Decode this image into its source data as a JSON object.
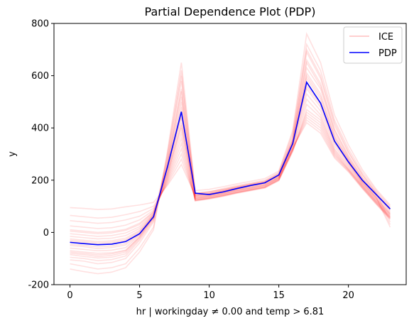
{
  "chart_data": {
    "type": "line",
    "title": "Partial Dependence Plot (PDP)",
    "xlabel": "hr | workingday ≠ 0.00 and temp > 6.81",
    "ylabel": "y",
    "xlim": [
      -1.15,
      24.15
    ],
    "ylim": [
      -200,
      800
    ],
    "xticks": [
      0,
      5,
      10,
      15,
      20
    ],
    "yticks": [
      -200,
      0,
      200,
      400,
      600,
      800
    ],
    "grid": false,
    "legend_position": "top-right",
    "x": [
      0,
      1,
      2,
      3,
      4,
      5,
      6,
      7,
      8,
      9,
      10,
      11,
      12,
      13,
      14,
      15,
      16,
      17,
      18,
      19,
      20,
      21,
      22,
      23
    ],
    "series": [
      {
        "name": "PDP",
        "color": "#0000ff",
        "values": [
          -38,
          -43,
          -47,
          -45,
          -35,
          -5,
          60,
          250,
          462,
          150,
          145,
          155,
          168,
          180,
          190,
          220,
          340,
          575,
          495,
          350,
          270,
          200,
          145,
          90
        ]
      },
      {
        "name": "ICE",
        "color": "#ff0000",
        "opacity": 0.12,
        "lines": [
          [
            -120,
            -130,
            -140,
            -135,
            -120,
            -60,
            20,
            300,
            620,
            150,
            155,
            168,
            180,
            190,
            200,
            230,
            380,
            720,
            620,
            430,
            320,
            230,
            160,
            100
          ],
          [
            -105,
            -110,
            -120,
            -115,
            -100,
            -40,
            40,
            280,
            580,
            145,
            150,
            162,
            175,
            186,
            196,
            225,
            360,
            690,
            590,
            410,
            305,
            220,
            155,
            95
          ],
          [
            -95,
            -100,
            -108,
            -104,
            -90,
            -30,
            45,
            270,
            550,
            140,
            147,
            158,
            170,
            182,
            192,
            220,
            355,
            660,
            570,
            395,
            295,
            212,
            150,
            90
          ],
          [
            -85,
            -92,
            -98,
            -95,
            -82,
            -25,
            50,
            260,
            520,
            138,
            145,
            155,
            167,
            178,
            188,
            218,
            350,
            630,
            550,
            380,
            285,
            205,
            145,
            85
          ],
          [
            -80,
            -85,
            -92,
            -88,
            -75,
            -20,
            55,
            255,
            500,
            135,
            142,
            152,
            164,
            175,
            185,
            215,
            345,
            610,
            530,
            370,
            280,
            200,
            140,
            80
          ],
          [
            -70,
            -75,
            -80,
            -78,
            -68,
            -15,
            60,
            250,
            480,
            132,
            140,
            150,
            162,
            172,
            182,
            212,
            340,
            590,
            510,
            360,
            275,
            195,
            135,
            75
          ],
          [
            -60,
            -65,
            -70,
            -68,
            -58,
            -10,
            62,
            240,
            460,
            130,
            138,
            148,
            160,
            170,
            180,
            210,
            335,
            570,
            495,
            350,
            270,
            190,
            130,
            72
          ],
          [
            -45,
            -50,
            -55,
            -52,
            -42,
            -5,
            65,
            230,
            440,
            128,
            136,
            146,
            158,
            168,
            178,
            208,
            330,
            550,
            480,
            340,
            265,
            188,
            128,
            70
          ],
          [
            -35,
            -40,
            -45,
            -42,
            -32,
            0,
            68,
            220,
            420,
            126,
            134,
            144,
            156,
            166,
            176,
            205,
            325,
            530,
            465,
            330,
            260,
            185,
            125,
            68
          ],
          [
            -25,
            -30,
            -35,
            -32,
            -22,
            8,
            70,
            215,
            400,
            124,
            132,
            142,
            154,
            164,
            174,
            203,
            320,
            510,
            450,
            320,
            255,
            182,
            122,
            65
          ],
          [
            -15,
            -20,
            -25,
            -22,
            -12,
            15,
            72,
            210,
            380,
            122,
            130,
            140,
            152,
            162,
            172,
            200,
            315,
            490,
            440,
            315,
            250,
            180,
            120,
            62
          ],
          [
            -5,
            -10,
            -15,
            -12,
            -2,
            22,
            75,
            205,
            360,
            120,
            128,
            138,
            150,
            160,
            170,
            198,
            310,
            470,
            430,
            310,
            245,
            178,
            118,
            60
          ],
          [
            10,
            5,
            0,
            3,
            12,
            35,
            80,
            200,
            340,
            122,
            130,
            140,
            152,
            162,
            172,
            200,
            312,
            460,
            420,
            305,
            242,
            176,
            116,
            58
          ],
          [
            25,
            20,
            15,
            18,
            28,
            48,
            85,
            195,
            320,
            124,
            132,
            142,
            154,
            164,
            174,
            202,
            314,
            450,
            410,
            300,
            240,
            174,
            114,
            56
          ],
          [
            45,
            40,
            35,
            38,
            48,
            62,
            92,
            190,
            300,
            130,
            138,
            148,
            160,
            170,
            180,
            206,
            318,
            440,
            400,
            295,
            238,
            172,
            112,
            55
          ],
          [
            65,
            60,
            55,
            58,
            68,
            80,
            100,
            185,
            280,
            135,
            143,
            153,
            165,
            175,
            185,
            210,
            320,
            430,
            390,
            290,
            235,
            170,
            110,
            52
          ],
          [
            95,
            92,
            88,
            90,
            98,
            105,
            115,
            180,
            260,
            140,
            148,
            158,
            170,
            180,
            190,
            215,
            325,
            420,
            380,
            285,
            232,
            168,
            108,
            50
          ],
          [
            -140,
            -150,
            -158,
            -152,
            -135,
            -75,
            10,
            310,
            650,
            160,
            165,
            175,
            186,
            196,
            206,
            235,
            390,
            760,
            650,
            450,
            335,
            240,
            165,
            105
          ],
          [
            -50,
            -55,
            -62,
            -58,
            -48,
            -8,
            55,
            290,
            600,
            148,
            155,
            165,
            176,
            186,
            196,
            226,
            370,
            700,
            600,
            420,
            310,
            222,
            150,
            40
          ],
          [
            -30,
            -35,
            -40,
            -37,
            -28,
            4,
            66,
            235,
            450,
            150,
            156,
            164,
            174,
            184,
            194,
            222,
            345,
            600,
            520,
            365,
            278,
            196,
            136,
            30
          ],
          [
            5,
            0,
            -5,
            -2,
            8,
            30,
            78,
            225,
            410,
            145,
            150,
            160,
            172,
            182,
            192,
            218,
            338,
            560,
            490,
            345,
            268,
            192,
            132,
            20
          ],
          [
            -75,
            -80,
            -86,
            -82,
            -70,
            -18,
            58,
            265,
            540,
            142,
            148,
            158,
            170,
            180,
            190,
            220,
            352,
            650,
            560,
            390,
            290,
            208,
            146,
            88
          ]
        ]
      }
    ]
  }
}
